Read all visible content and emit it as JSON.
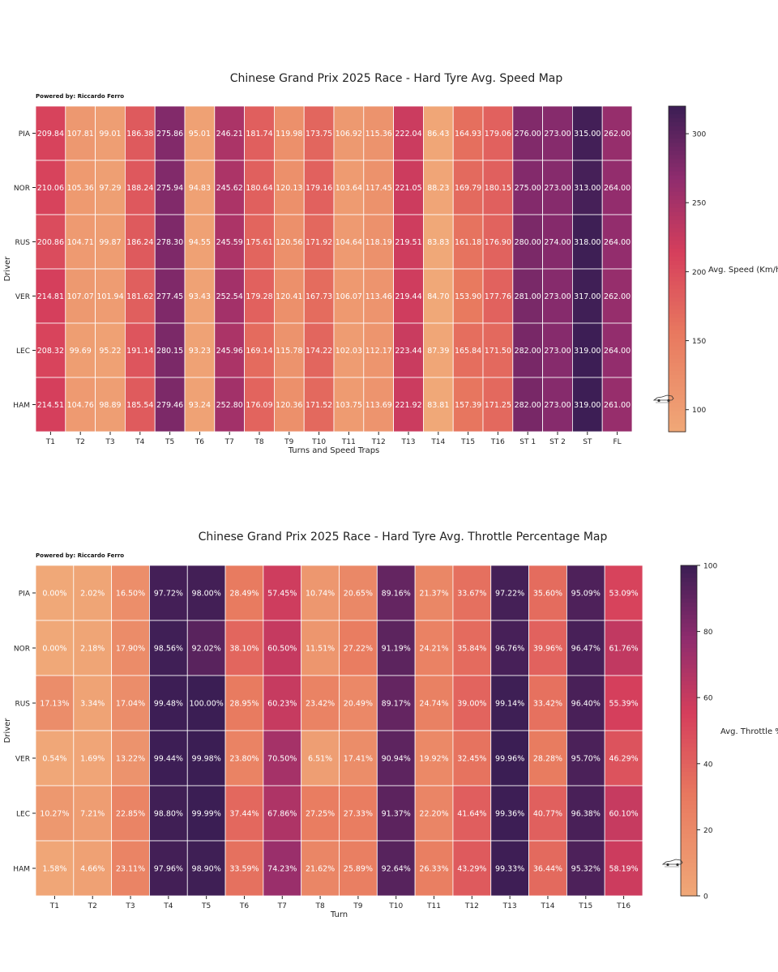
{
  "colors": {
    "low": "#f0a878",
    "mid": "#d63f5c",
    "high": "#3b1e54",
    "grid": "#ffffff"
  },
  "icons": {
    "logo": "car-logo-icon"
  },
  "chart_data": [
    {
      "type": "heatmap",
      "title": "Chinese Grand Prix 2025 Race - Hard Tyre Avg. Speed Map",
      "credit": "Powered by: Riccardo Ferro",
      "xlabel": "Turns and Speed Traps",
      "ylabel": "Driver",
      "colorbar_label": "Avg. Speed (Km/h)",
      "colorbar_range": [
        84,
        320
      ],
      "colorbar_ticks": [
        "100",
        "150",
        "200",
        "250",
        "300"
      ],
      "colorbar_tick_values": [
        100,
        150,
        200,
        250,
        300
      ],
      "value_suffix": "",
      "columns": [
        "T1",
        "T2",
        "T3",
        "T4",
        "T5",
        "T6",
        "T7",
        "T8",
        "T9",
        "T10",
        "T11",
        "T12",
        "T13",
        "T14",
        "T15",
        "T16",
        "ST 1",
        "ST 2",
        "ST",
        "FL"
      ],
      "rows": [
        "PIA",
        "NOR",
        "RUS",
        "VER",
        "LEC",
        "HAM"
      ],
      "values": [
        [
          209.84,
          107.81,
          99.01,
          186.38,
          275.86,
          95.01,
          246.21,
          181.74,
          119.98,
          173.75,
          106.92,
          115.36,
          222.04,
          86.43,
          164.93,
          179.06,
          276.0,
          273.0,
          315.0,
          262.0
        ],
        [
          210.06,
          105.36,
          97.29,
          188.24,
          275.94,
          94.83,
          245.62,
          180.64,
          120.13,
          179.16,
          103.64,
          117.45,
          221.05,
          88.23,
          169.79,
          180.15,
          275.0,
          273.0,
          313.0,
          264.0
        ],
        [
          200.86,
          104.71,
          99.87,
          186.24,
          278.3,
          94.55,
          245.59,
          175.61,
          120.56,
          171.92,
          104.64,
          118.19,
          219.51,
          83.83,
          161.18,
          176.9,
          280.0,
          274.0,
          318.0,
          264.0
        ],
        [
          214.81,
          107.07,
          101.94,
          181.62,
          277.45,
          93.43,
          252.54,
          179.28,
          120.41,
          167.73,
          106.07,
          113.46,
          219.44,
          84.7,
          153.9,
          177.76,
          281.0,
          273.0,
          317.0,
          262.0
        ],
        [
          208.32,
          99.69,
          95.22,
          191.14,
          280.15,
          93.23,
          245.96,
          169.14,
          115.78,
          174.22,
          102.03,
          112.17,
          223.44,
          87.39,
          165.84,
          171.5,
          282.0,
          273.0,
          319.0,
          264.0
        ],
        [
          214.51,
          104.76,
          98.89,
          185.54,
          279.46,
          93.24,
          252.8,
          176.09,
          120.36,
          171.52,
          103.75,
          113.69,
          221.92,
          83.81,
          157.39,
          171.25,
          282.0,
          273.0,
          319.0,
          261.0
        ]
      ]
    },
    {
      "type": "heatmap",
      "title": "Chinese Grand Prix 2025 Race - Hard Tyre Avg. Throttle Percentage Map",
      "credit": "Powered by: Riccardo Ferro",
      "xlabel": "Turn",
      "ylabel": "Driver",
      "colorbar_label": "Avg. Throttle %",
      "colorbar_range": [
        0,
        100
      ],
      "colorbar_ticks": [
        "0",
        "20",
        "40",
        "60",
        "80",
        "100"
      ],
      "colorbar_tick_values": [
        0,
        20,
        40,
        60,
        80,
        100
      ],
      "value_suffix": "%",
      "columns": [
        "T1",
        "T2",
        "T3",
        "T4",
        "T5",
        "T6",
        "T7",
        "T8",
        "T9",
        "T10",
        "T11",
        "T12",
        "T13",
        "T14",
        "T15",
        "T16"
      ],
      "rows": [
        "PIA",
        "NOR",
        "RUS",
        "VER",
        "LEC",
        "HAM"
      ],
      "values": [
        [
          0.0,
          2.02,
          16.5,
          97.72,
          98.0,
          28.49,
          57.45,
          10.74,
          20.65,
          89.16,
          21.37,
          33.67,
          97.22,
          35.6,
          95.09,
          53.09
        ],
        [
          0.0,
          2.18,
          17.9,
          98.56,
          92.02,
          38.1,
          60.5,
          11.51,
          27.22,
          91.19,
          24.21,
          35.84,
          96.76,
          39.96,
          96.47,
          61.76
        ],
        [
          17.13,
          3.34,
          17.04,
          99.48,
          100.0,
          28.95,
          60.23,
          23.42,
          20.49,
          89.17,
          24.74,
          39.0,
          99.14,
          33.42,
          96.4,
          55.39
        ],
        [
          0.54,
          1.69,
          13.22,
          99.44,
          99.98,
          23.8,
          70.5,
          6.51,
          17.41,
          90.94,
          19.92,
          32.45,
          99.96,
          28.28,
          95.7,
          46.29
        ],
        [
          10.27,
          7.21,
          22.85,
          98.8,
          99.99,
          37.44,
          67.86,
          27.25,
          27.33,
          91.37,
          22.2,
          41.64,
          99.36,
          40.77,
          96.38,
          60.1
        ],
        [
          1.58,
          4.66,
          23.11,
          97.96,
          98.9,
          33.59,
          74.23,
          21.62,
          25.89,
          92.64,
          26.33,
          43.29,
          99.33,
          36.44,
          95.32,
          58.19
        ]
      ]
    }
  ]
}
